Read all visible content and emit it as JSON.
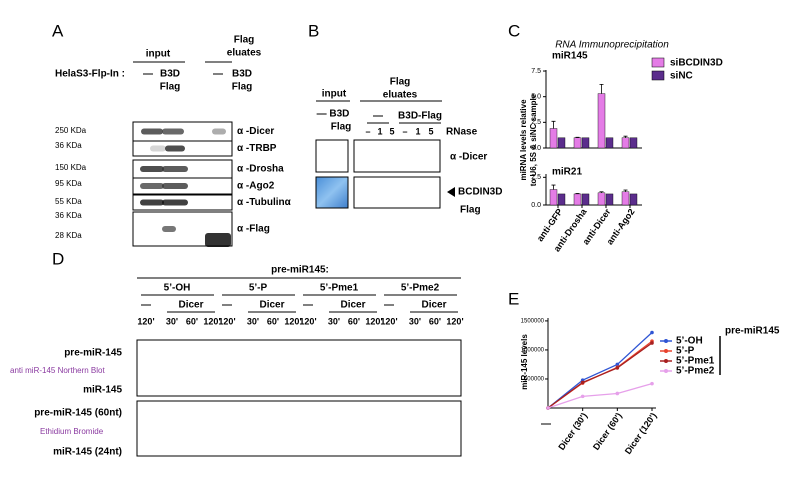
{
  "panel_a": {
    "letter": "A",
    "input": "input",
    "eluates": [
      "Flag",
      "eluates"
    ],
    "row_label": "HelaS3-Flp-In :",
    "lanes": [
      [
        "—"
      ],
      [
        "B3D",
        "Flag"
      ],
      [
        "—"
      ],
      [
        "B3D",
        "Flag"
      ]
    ],
    "blots": [
      {
        "markers": [
          "250 KDa"
        ],
        "antibody": "α -Dicer"
      },
      {
        "markers": [
          "36 KDa"
        ],
        "antibody": "α -TRBP"
      },
      {
        "markers": [
          "150 KDa"
        ],
        "antibody": "α -Drosha"
      },
      {
        "markers": [
          "95 KDa"
        ],
        "antibody": "α -Ago2"
      },
      {
        "markers": [
          "55 KDa"
        ],
        "antibody": "α -Tubulinα"
      },
      {
        "markers": [
          "36 KDa",
          "28 KDa"
        ],
        "antibody": "α -Flag"
      }
    ]
  },
  "panel_b": {
    "letter": "B",
    "input": "input",
    "eluates": [
      "Flag",
      "eluates"
    ],
    "input_lane": [
      "— B3D",
      "Flag"
    ],
    "eluate_groups": [
      "—",
      "B3D-Flag"
    ],
    "rnase_lanes": [
      "–",
      "1",
      "5",
      "–",
      "1",
      "5"
    ],
    "rnase": "RNase",
    "rows": [
      [
        "α -Dicer"
      ],
      [
        "BCDIN3D",
        "Flag"
      ]
    ]
  },
  "panel_c": {
    "letter": "C"
  },
  "panel_d": {
    "letter": "D",
    "title": "pre-miR145:",
    "groups": [
      "5’-OH",
      "5’-P",
      "5’-Pme1",
      "5’-Pme2"
    ],
    "conditions": [
      "—",
      "Dicer"
    ],
    "times": [
      "120'",
      "30'",
      "60'",
      "120'"
    ],
    "northern_rows": [
      "pre-miR-145",
      "anti miR-145 Northern Blot",
      "miR-145"
    ],
    "ethidium_rows": [
      "pre-miR-145 (60nt)",
      "Ethidium Bromide",
      "miR-145 (24nt)"
    ]
  },
  "panel_e": {
    "letter": "E"
  },
  "chart_data": [
    {
      "type": "bar",
      "title": "RNA Immunoprecipitation",
      "y_label": [
        "miRNA levels relative",
        "to U6, 5S & siNC sample"
      ],
      "categories": [
        "anti-GFP",
        "anti-Drosha",
        "anti-Dicer",
        "anti-Ago2"
      ],
      "series": [
        {
          "name": "siBCDIN3D",
          "color": "#e47ce6"
        },
        {
          "name": "siNC",
          "color": "#5b2d8c"
        }
      ],
      "subplots": [
        {
          "title": "miR145",
          "ylim": [
            0,
            7.6
          ],
          "yticks": [
            {
              "value": 0,
              "label": "0.0"
            },
            {
              "value": 2.5,
              "label": "2.5"
            },
            {
              "value": 5,
              "label": "5.0"
            },
            {
              "value": 7.5,
              "label": "7.5"
            }
          ],
          "series": [
            {
              "values": [
                1.9,
                1.0,
                5.3,
                1.0
              ],
              "errors": [
                0.7,
                0.05,
                0.9,
                0.15
              ]
            },
            {
              "values": [
                1.0,
                1.0,
                1.0,
                1.0
              ]
            }
          ]
        },
        {
          "title": "miR21",
          "ylim": [
            0,
            2.8
          ],
          "yticks": [
            {
              "value": 0,
              "label": "0.0"
            },
            {
              "value": 2.5,
              "label": "2.5"
            }
          ],
          "series": [
            {
              "values": [
                1.4,
                1.0,
                1.1,
                1.2
              ],
              "errors": [
                0.4,
                0.05,
                0.1,
                0.15
              ]
            },
            {
              "values": [
                1.0,
                1.0,
                1.0,
                1.0
              ]
            }
          ]
        }
      ]
    },
    {
      "type": "line",
      "y_label": "miR-145 levels",
      "categories": [
        "—",
        "Dicer (30')",
        "Dicer (60')",
        "Dicer (120')"
      ],
      "legend_title": "pre-miR145",
      "ylim": [
        0,
        1550000
      ],
      "yticks": [
        500000,
        1000000,
        1500000
      ],
      "series": [
        {
          "name": "5’-OH",
          "color": "#2f55d4",
          "values": [
            0,
            480000,
            750000,
            1300000
          ]
        },
        {
          "name": "5’-P",
          "color": "#e8432e",
          "values": [
            0,
            430000,
            700000,
            1150000
          ]
        },
        {
          "name": "5’-Pme1",
          "color": "#a82020",
          "values": [
            0,
            440000,
            690000,
            1120000
          ]
        },
        {
          "name": "5’-Pme2",
          "color": "#e6a0ea",
          "values": [
            0,
            200000,
            250000,
            420000
          ]
        }
      ]
    }
  ]
}
